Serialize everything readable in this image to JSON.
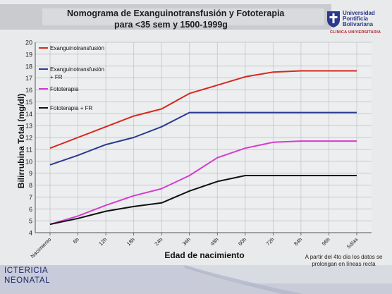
{
  "header": {
    "title_line1": "Nomograma de Exanguinotransfusión y Fototerapia",
    "title_line2": "para <35 sem y 1500-1999g"
  },
  "logo": {
    "line1": "Universidad",
    "line2": "Pontificia",
    "line3": "Bolivariana",
    "line4": "CLÍNICA UNIVERSITARIA",
    "color": "#2b3a8c",
    "accent": "#b0202a"
  },
  "footer": {
    "line1": "ICTERICIA",
    "line2": "NEONATAL"
  },
  "note": "A partir del 4to día los datos se prolongan en líneas recta",
  "chart_data": {
    "type": "line",
    "xlabel": "Edad de nacimiento",
    "ylabel": "Bilirrubina Total (mg/dl)",
    "categories": [
      "Nacimiento",
      "6h",
      "12h",
      "18h",
      "24h",
      "36h",
      "48h",
      "60h",
      "72h",
      "84h",
      "96h",
      "5días"
    ],
    "ylim": [
      4,
      20
    ],
    "yticks": [
      4,
      5,
      6,
      7,
      8,
      9,
      10,
      11,
      12,
      13,
      14,
      15,
      16,
      17,
      18,
      19,
      20
    ],
    "grid": true,
    "legend_position": "top-left",
    "series": [
      {
        "name": "Exanguinotransfusión",
        "color": "#d7281f",
        "values": [
          11.1,
          12.0,
          12.9,
          13.8,
          14.4,
          15.7,
          16.4,
          17.1,
          17.5,
          17.6,
          17.6,
          17.6
        ]
      },
      {
        "name": "Exanguinotransfusión + FR",
        "color": "#2c3a8e",
        "values": [
          9.7,
          10.5,
          11.4,
          12.0,
          12.9,
          14.1,
          14.1,
          14.1,
          14.1,
          14.1,
          14.1,
          14.1
        ]
      },
      {
        "name": "Fototerapia",
        "color": "#d63bd0",
        "values": [
          4.7,
          5.4,
          6.3,
          7.1,
          7.7,
          8.8,
          10.3,
          11.1,
          11.6,
          11.7,
          11.7,
          11.7
        ]
      },
      {
        "name": "Fototerapia + FR",
        "color": "#111111",
        "values": [
          4.7,
          5.2,
          5.8,
          6.2,
          6.5,
          7.5,
          8.3,
          8.8,
          8.8,
          8.8,
          8.8,
          8.8
        ]
      }
    ]
  }
}
